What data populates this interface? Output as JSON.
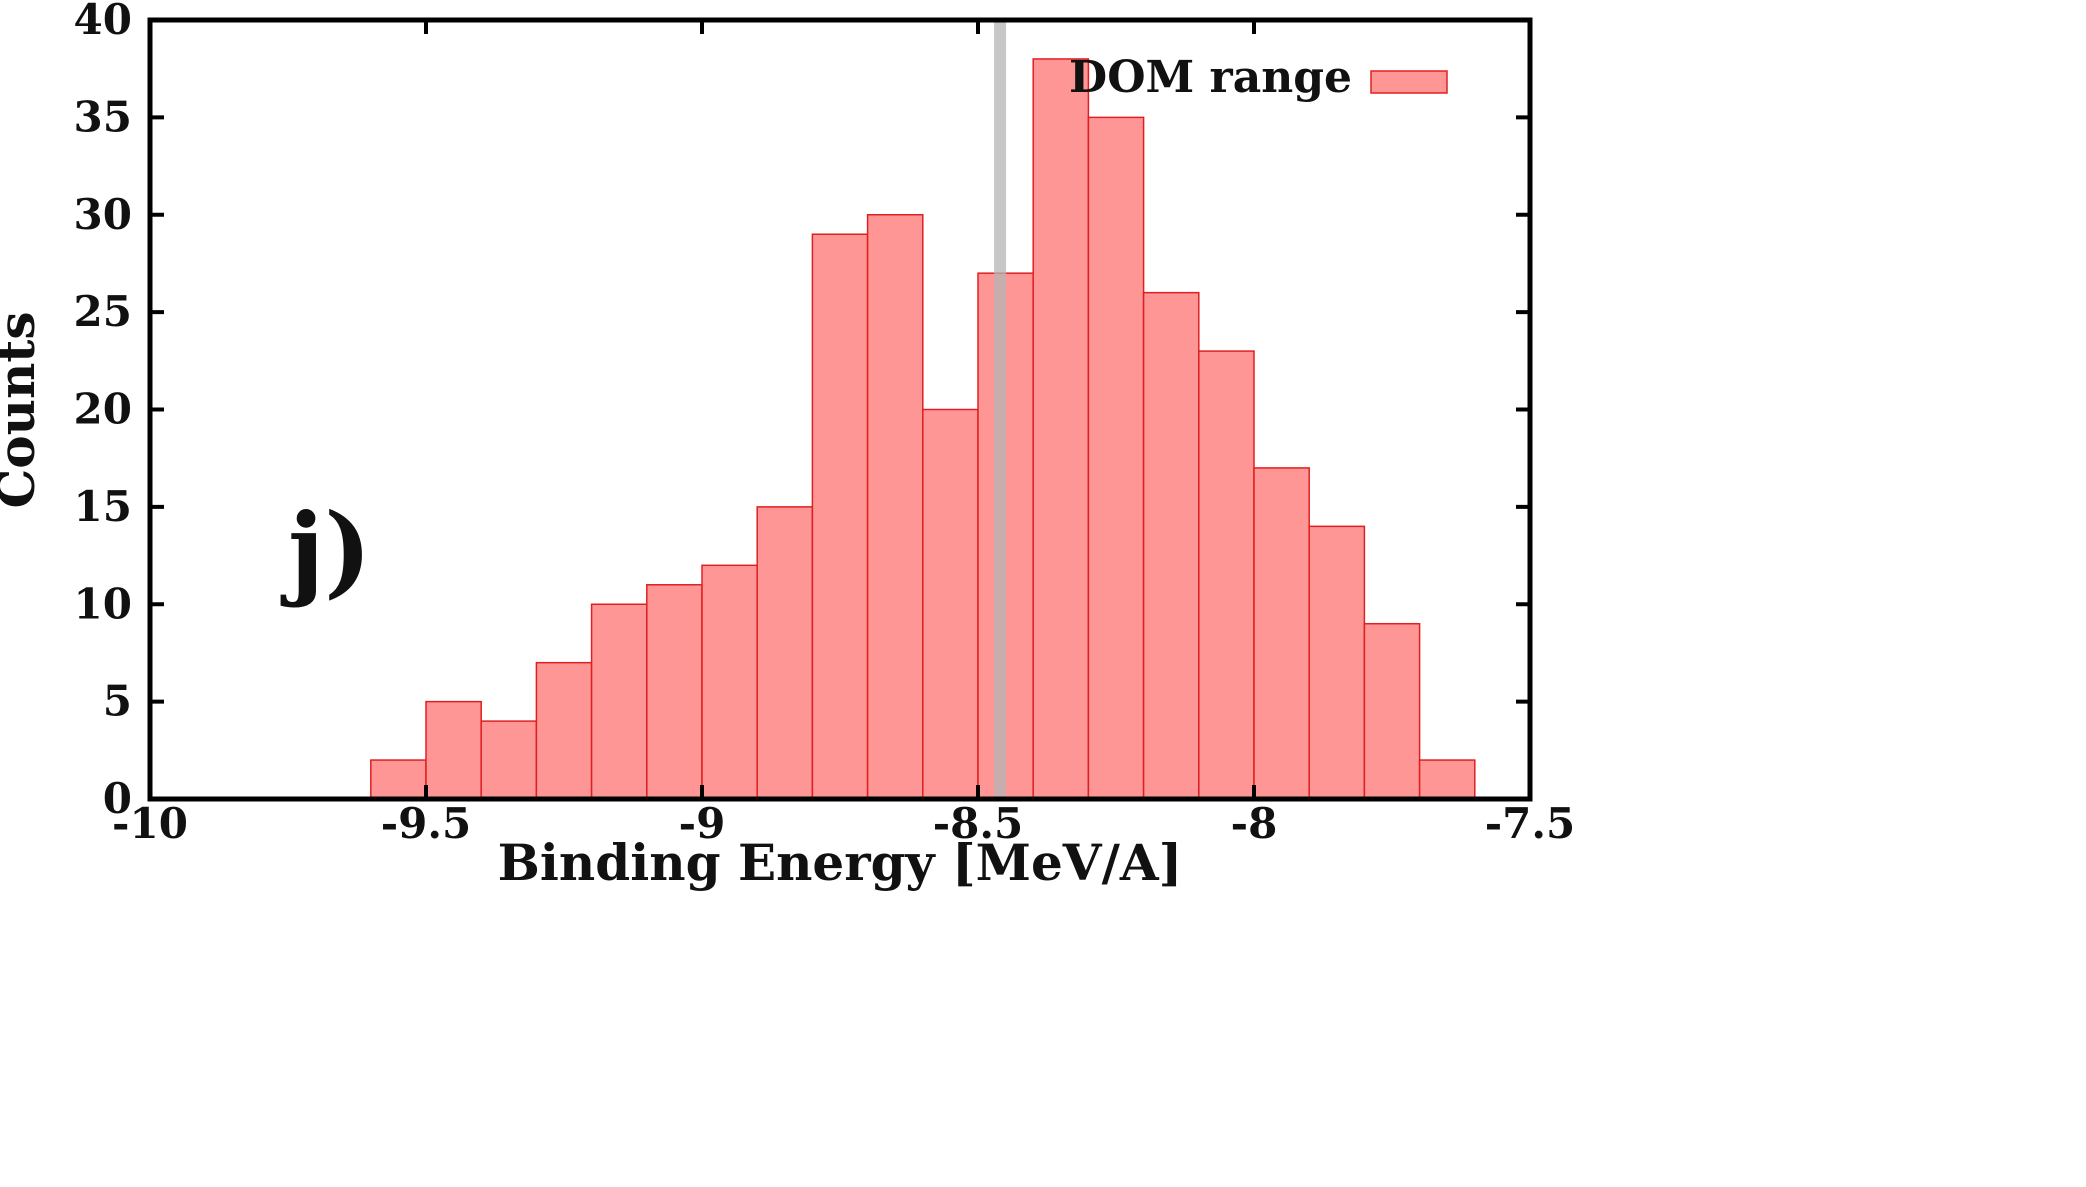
{
  "chart_data": {
    "type": "bar",
    "bin_width": 0.1,
    "x": [
      -9.55,
      -9.45,
      -9.35,
      -9.25,
      -9.15,
      -9.05,
      -8.95,
      -8.85,
      -8.75,
      -8.65,
      -8.55,
      -8.45,
      -8.35,
      -8.25,
      -8.15,
      -8.05,
      -7.95,
      -7.85,
      -7.75,
      -7.65
    ],
    "series": [
      {
        "name": "DOM range",
        "values": [
          2,
          5,
          4,
          7,
          10,
          11,
          12,
          15,
          29,
          30,
          20,
          27,
          38,
          35,
          26,
          23,
          17,
          14,
          9,
          2
        ]
      }
    ],
    "reference_line_x": -8.46,
    "xlabel": "Binding Energy [MeV/A]",
    "ylabel": "Counts",
    "xlim": [
      -10,
      -7.5
    ],
    "ylim": [
      0,
      40
    ],
    "x_ticks": [
      "-10",
      "-9.5",
      "-9",
      "-8.5",
      "-8",
      "-7.5"
    ],
    "y_ticks": [
      "0",
      "5",
      "10",
      "15",
      "20",
      "25",
      "30",
      "35",
      "40"
    ],
    "panel_label": "j)",
    "legend_position": "top-right",
    "grid": false,
    "colors": {
      "bar_fill": "#ff9696",
      "bar_stroke": "#e02020",
      "reference_line": "#b4b4b4"
    }
  }
}
